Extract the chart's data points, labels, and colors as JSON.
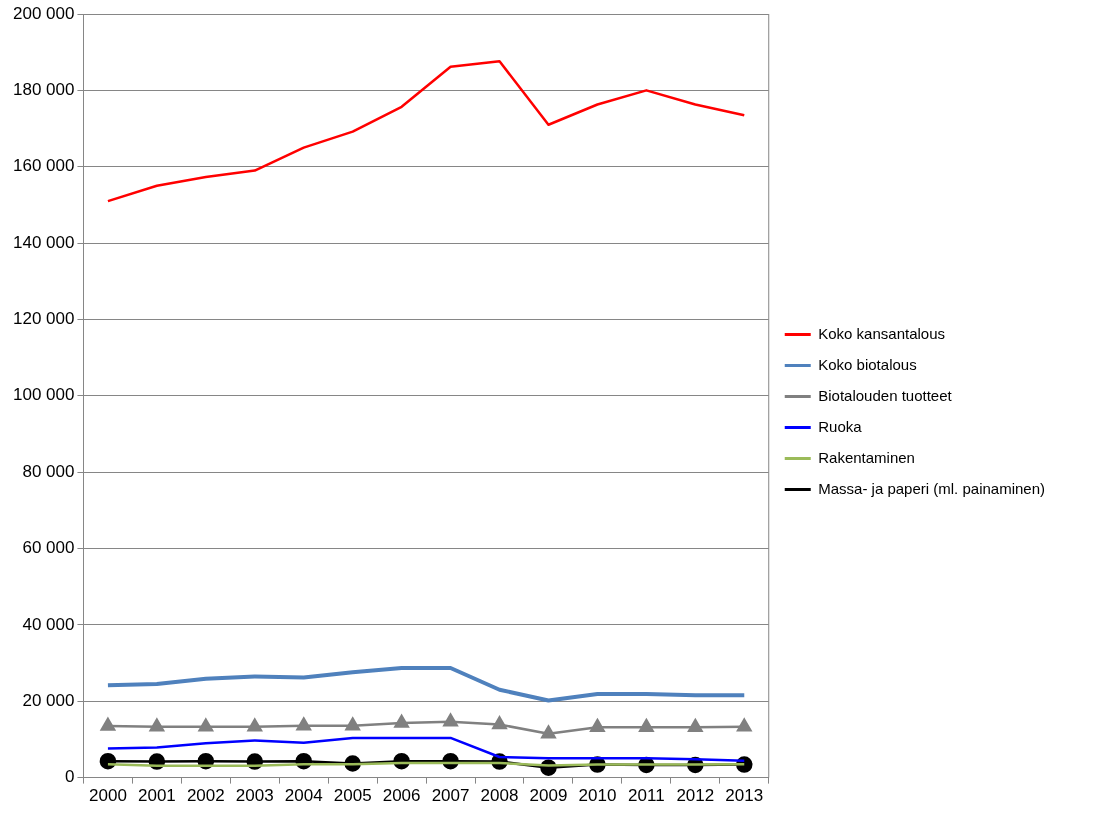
{
  "chart_data": {
    "type": "line",
    "categories": [
      "2000",
      "2001",
      "2002",
      "2003",
      "2004",
      "2005",
      "2006",
      "2007",
      "2008",
      "2009",
      "2010",
      "2011",
      "2012",
      "2013"
    ],
    "ylim": [
      0,
      200000
    ],
    "yticks": [
      {
        "value": 0,
        "label": "0"
      },
      {
        "value": 20000,
        "label": "20 000"
      },
      {
        "value": 40000,
        "label": "40 000"
      },
      {
        "value": 60000,
        "label": "60 000"
      },
      {
        "value": 80000,
        "label": "80 000"
      },
      {
        "value": 100000,
        "label": "100 000"
      },
      {
        "value": 120000,
        "label": "120 000"
      },
      {
        "value": 140000,
        "label": "140 000"
      },
      {
        "value": 160000,
        "label": "160 000"
      },
      {
        "value": 180000,
        "label": "180 000"
      },
      {
        "value": 200000,
        "label": "200 000"
      }
    ],
    "grid": "y",
    "legend": "right",
    "series": [
      {
        "name": "Koko kansantalous",
        "color": "#ff0000",
        "values": [
          151000,
          155000,
          157300,
          159000,
          165000,
          169200,
          175700,
          186200,
          187600,
          171000,
          176300,
          180000,
          176300,
          173500
        ]
      },
      {
        "name": "Koko biotalous",
        "color": "#4f81bd",
        "values": [
          24200,
          24500,
          25900,
          26500,
          26200,
          27600,
          28700,
          28700,
          23000,
          20200,
          21900,
          21900,
          21600,
          21600
        ]
      },
      {
        "name": "Biotalouden tuotteet",
        "color": "#808080",
        "marker": "triangle",
        "values": [
          13500,
          13300,
          13300,
          13300,
          13600,
          13600,
          14300,
          14600,
          13900,
          11500,
          13200,
          13200,
          13200,
          13300
        ]
      },
      {
        "name": "Ruoka",
        "color": "#0000ff",
        "values": [
          7600,
          7900,
          9000,
          9700,
          9100,
          10400,
          10400,
          10400,
          5400,
          5100,
          5100,
          5100,
          4800,
          4400
        ]
      },
      {
        "name": "Rakentaminen",
        "color": "#9bbb59",
        "values": [
          3500,
          3100,
          3100,
          3100,
          3500,
          3500,
          3800,
          3800,
          3800,
          3200,
          3400,
          3400,
          3400,
          3500
        ]
      },
      {
        "name": "Massa- ja paperi (ml. painaminen)",
        "color": "#000000",
        "marker": "circle",
        "values": [
          4300,
          4200,
          4300,
          4200,
          4300,
          3700,
          4300,
          4300,
          4200,
          2600,
          3400,
          3300,
          3300,
          3400
        ]
      }
    ]
  }
}
